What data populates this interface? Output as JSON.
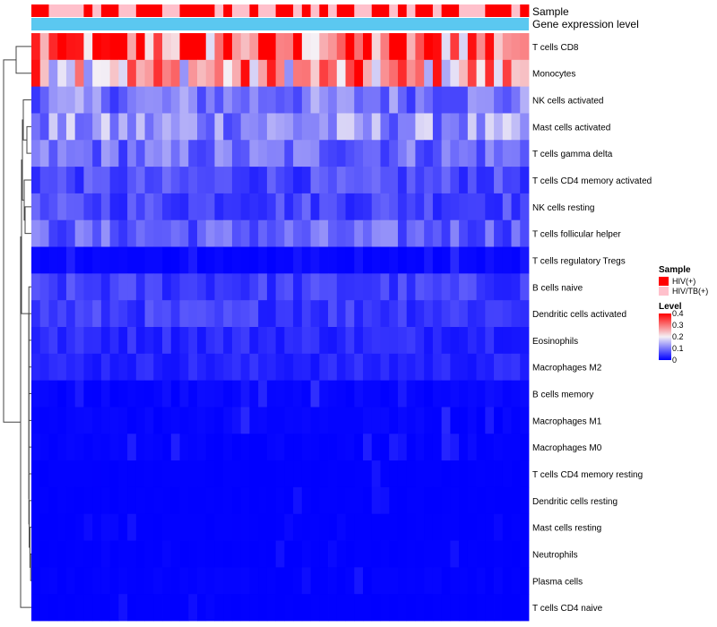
{
  "chart_data": {
    "type": "heatmap",
    "annotations": {
      "sample_label": "Sample",
      "gene_label": "Gene expression level"
    },
    "legend": {
      "sample_title": "Sample",
      "sample_entries": [
        {
          "label": "HIV(+)",
          "color": "#FF0000"
        },
        {
          "label": "HIV/TB(+)",
          "color": "#FFC0CB"
        }
      ],
      "level_title": "Level",
      "level_ticks": [
        "0.4",
        "0.3",
        "0.2",
        "0.1",
        "0"
      ],
      "level_tick_values": [
        0.4,
        0.3,
        0.2,
        0.1,
        0
      ],
      "color_low": "#0000FF",
      "color_mid": "#F5F0F5",
      "color_high": "#FF0000",
      "range": [
        0,
        0.4
      ]
    },
    "sample_groups": [
      "HIV(+)",
      "HIV(+)",
      "HIV/TB(+)",
      "HIV/TB(+)",
      "HIV/TB(+)",
      "HIV/TB(+)",
      "HIV(+)",
      "HIV/TB(+)",
      "HIV(+)",
      "HIV(+)",
      "HIV/TB(+)",
      "HIV/TB(+)",
      "HIV(+)",
      "HIV(+)",
      "HIV(+)",
      "HIV/TB(+)",
      "HIV/TB(+)",
      "HIV(+)",
      "HIV(+)",
      "HIV(+)",
      "HIV(+)",
      "HIV/TB(+)",
      "HIV(+)",
      "HIV/TB(+)",
      "HIV/TB(+)",
      "HIV(+)",
      "HIV/TB(+)",
      "HIV/TB(+)",
      "HIV(+)",
      "HIV(+)",
      "HIV/TB(+)",
      "HIV(+)",
      "HIV/TB(+)",
      "HIV(+)",
      "HIV/TB(+)",
      "HIV(+)",
      "HIV(+)",
      "HIV/TB(+)",
      "HIV/TB(+)",
      "HIV(+)",
      "HIV(+)",
      "HIV/TB(+)",
      "HIV(+)",
      "HIV/TB(+)",
      "HIV(+)",
      "HIV(+)",
      "HIV/TB(+)",
      "HIV(+)",
      "HIV(+)",
      "HIV/TB(+)",
      "HIV/TB(+)",
      "HIV/TB(+)",
      "HIV(+)",
      "HIV(+)",
      "HIV(+)",
      "HIV/TB(+)",
      "HIV(+)"
    ],
    "rows": [
      "T cells CD8",
      "Monocytes",
      "NK cells activated",
      "Mast cells activated",
      "T cells gamma delta",
      "T cells CD4 memory activated",
      "NK cells resting",
      "T cells follicular helper",
      "T cells regulatory  Tregs",
      "B cells naive",
      "Dendritic cells activated",
      "Eosinophils",
      "Macrophages M2",
      "B cells memory",
      "Macrophages M1",
      "Macrophages M0",
      "T cells CD4 memory resting",
      "Dendritic cells resting",
      "Mast cells resting",
      "Neutrophils",
      "Plasma cells",
      "T cells CD4 naive"
    ],
    "row_means": [
      0.32,
      0.26,
      0.1,
      0.12,
      0.09,
      0.06,
      0.06,
      0.08,
      0.02,
      0.05,
      0.05,
      0.035,
      0.03,
      0.025,
      0.02,
      0.015,
      0.005,
      0.005,
      0.005,
      0.005,
      0.01,
      0.003
    ]
  }
}
